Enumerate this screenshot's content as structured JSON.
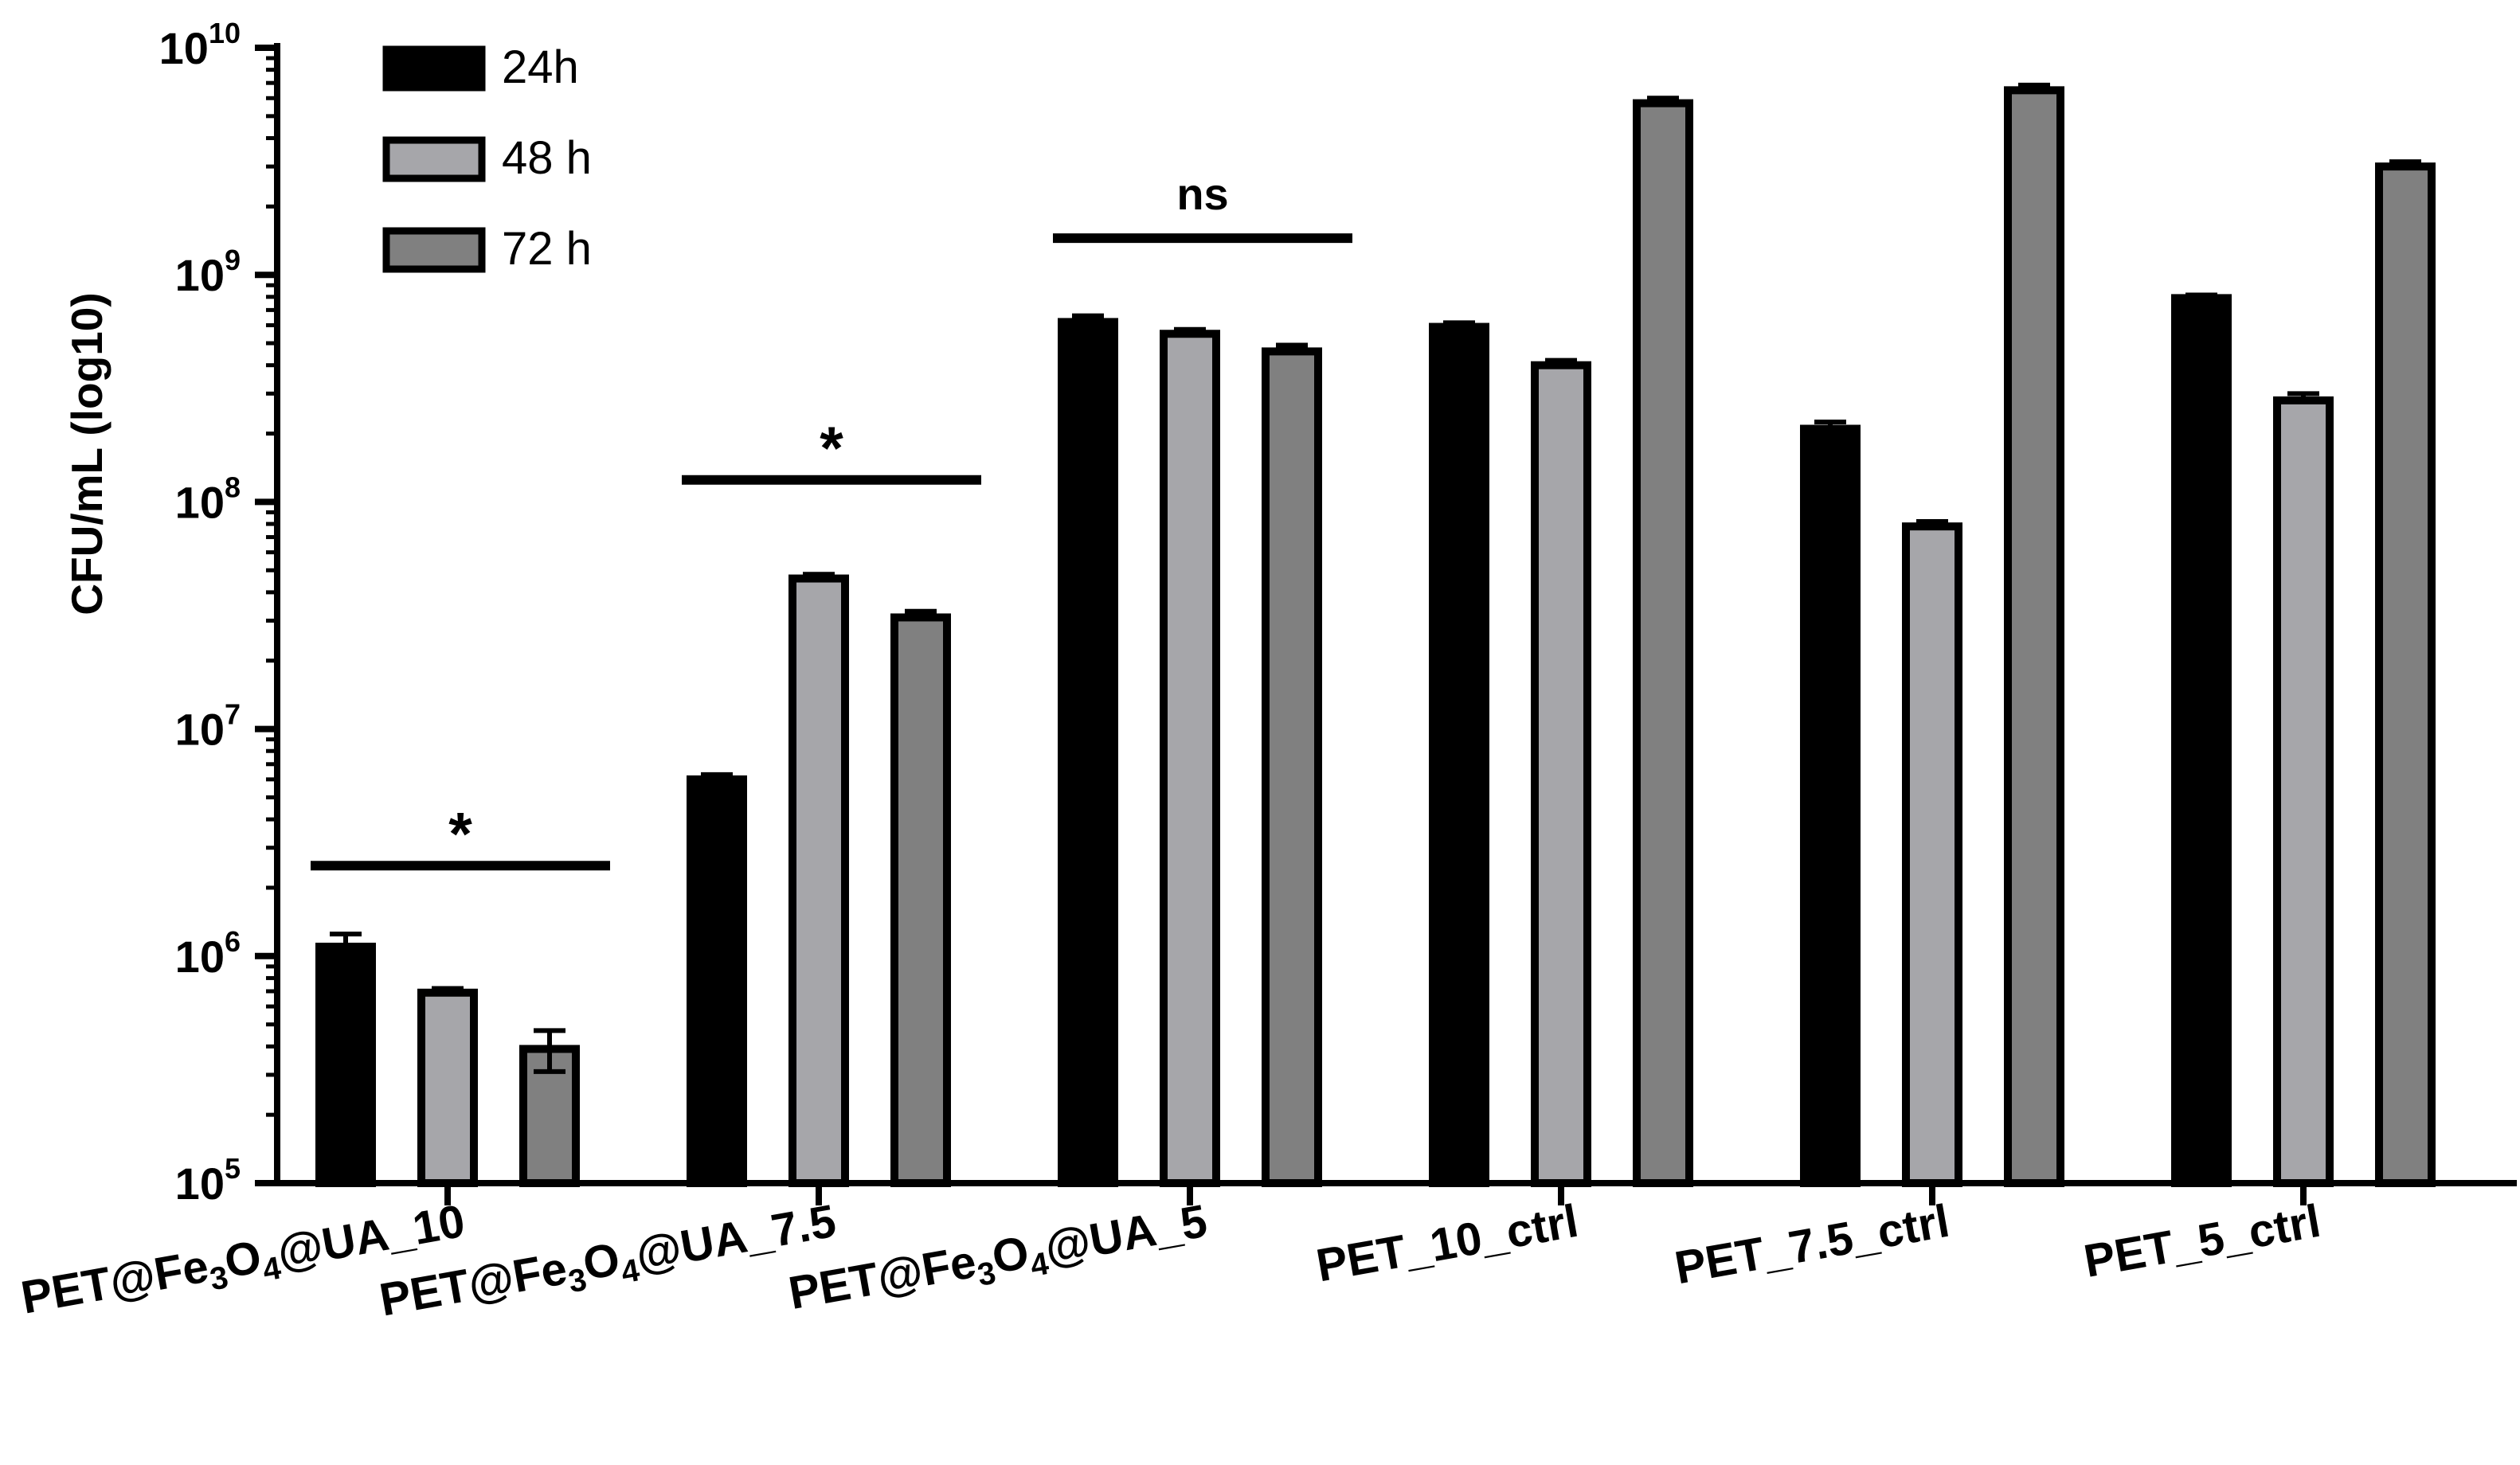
{
  "chart_data": {
    "type": "bar",
    "title": "",
    "xlabel": "",
    "ylabel": "CFU/mL (log10)",
    "yscale": "log10",
    "ylim": [
      100000,
      10000000000
    ],
    "yticks": [
      {
        "base": "10",
        "exp": "5"
      },
      {
        "base": "10",
        "exp": "6"
      },
      {
        "base": "10",
        "exp": "7"
      },
      {
        "base": "10",
        "exp": "8"
      },
      {
        "base": "10",
        "exp": "9"
      },
      {
        "base": "10",
        "exp": "10"
      }
    ],
    "categories": [
      {
        "parts": [
          [
            "PET@Fe",
            ""
          ],
          [
            "3",
            "sub"
          ],
          [
            "O",
            ""
          ],
          [
            "4",
            "sub"
          ],
          [
            "@UA_10",
            ""
          ]
        ]
      },
      {
        "parts": [
          [
            "PET@Fe",
            ""
          ],
          [
            "3",
            "sub"
          ],
          [
            "O",
            ""
          ],
          [
            "4",
            "sub"
          ],
          [
            "@UA_7.5",
            ""
          ]
        ]
      },
      {
        "parts": [
          [
            "PET@Fe",
            ""
          ],
          [
            "3",
            "sub"
          ],
          [
            "O",
            ""
          ],
          [
            "4",
            "sub"
          ],
          [
            "@UA_5",
            ""
          ]
        ]
      },
      {
        "parts": [
          [
            "PET_10_ctrl",
            ""
          ]
        ]
      },
      {
        "parts": [
          [
            "PET_7.5_ctrl",
            ""
          ]
        ]
      },
      {
        "parts": [
          [
            "PET_5_ctrl",
            ""
          ]
        ]
      }
    ],
    "series": [
      {
        "name": "24h",
        "color": "#000000",
        "values": [
          1100000,
          6000000,
          620000000,
          590000000,
          210000000,
          790000000
        ],
        "errors": [
          150000,
          300000,
          40000000,
          25000000,
          15000000,
          25000000
        ]
      },
      {
        "name": "48 h",
        "color": "#a6a6aa",
        "values": [
          690000,
          46000000,
          550000000,
          400000000,
          78000000,
          280000000
        ],
        "errors": [
          30000,
          2000000,
          25000000,
          20000000,
          4000000,
          20000000
        ]
      },
      {
        "name": "72 h",
        "color": "#808080",
        "values": [
          390000,
          31000000,
          460000000,
          5700000000,
          6500000000,
          3000000000
        ],
        "errors": [
          80000,
          2000000,
          30000000,
          300000000,
          350000000,
          150000000
        ]
      }
    ],
    "significance": [
      {
        "label": "*",
        "category_index": 0,
        "level": 2500000
      },
      {
        "label": "*",
        "category_index": 1,
        "level": 125000000
      },
      {
        "label": "ns",
        "category_index": 2,
        "level": 1450000000
      }
    ]
  }
}
